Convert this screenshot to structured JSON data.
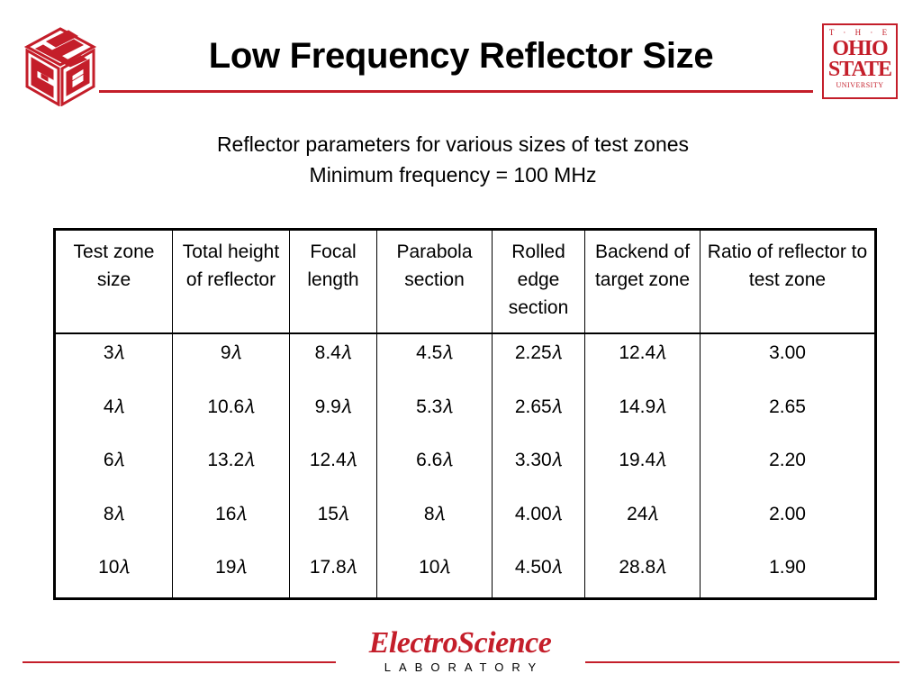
{
  "slide": {
    "title": "Low Frequency Reflector Size",
    "subtitle_line1": "Reflector parameters for various sizes of test zones",
    "subtitle_line2": "Minimum frequency  = 100 MHz"
  },
  "logos": {
    "left": "CSE",
    "osu": [
      "T · H · E",
      "OHIO",
      "STATE",
      "UNIVERSITY"
    ],
    "esl_main": "ElectroScience",
    "esl_sub": "LABORATORY"
  },
  "colors": {
    "accent": "#c41e2a"
  },
  "table": {
    "headers": [
      "Test zone size",
      "Total height of reflector",
      "Focal length",
      "Parabola section",
      "Rolled edge section",
      "Backend of target zone",
      "Ratio of reflector to test zone"
    ],
    "columns": [
      [
        "3𝜆",
        "4𝜆",
        "6𝜆",
        "8𝜆",
        "10𝜆"
      ],
      [
        "9𝜆",
        "10.6𝜆",
        "13.2𝜆",
        "16𝜆",
        "19𝜆"
      ],
      [
        "8.4𝜆",
        "9.9𝜆",
        "12.4𝜆",
        "15𝜆",
        "17.8𝜆"
      ],
      [
        "4.5𝜆",
        "5.3𝜆",
        "6.6𝜆",
        "8𝜆",
        "10𝜆"
      ],
      [
        "2.25𝜆",
        "2.65𝜆",
        "3.30𝜆",
        "4.00𝜆",
        "4.50𝜆"
      ],
      [
        "12.4𝜆",
        "14.9𝜆",
        "19.4𝜆",
        "24𝜆",
        "28.8𝜆"
      ],
      [
        "3.00",
        "2.65",
        "2.20",
        "2.00",
        "1.90"
      ]
    ]
  }
}
